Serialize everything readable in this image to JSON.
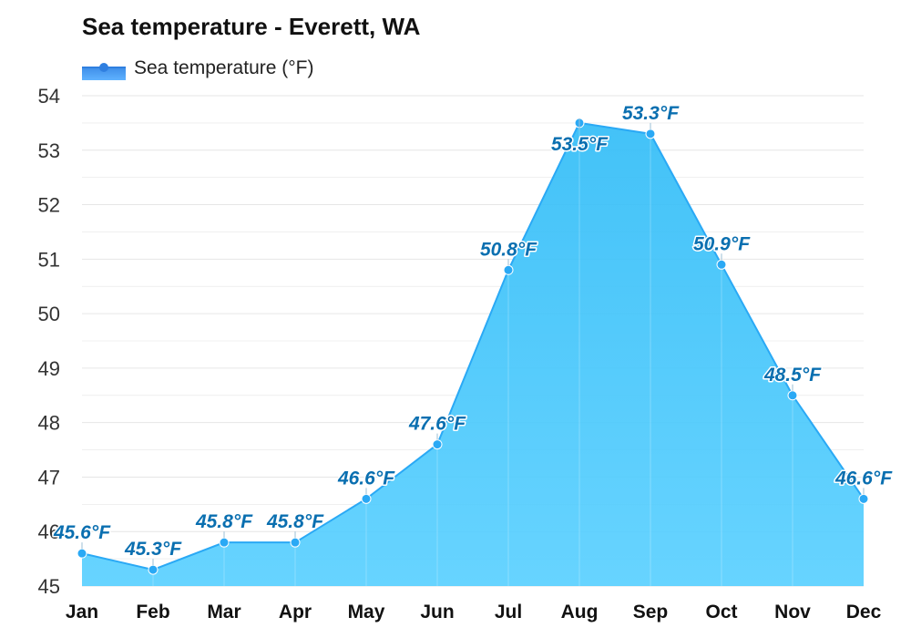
{
  "chart_data": {
    "type": "area",
    "title": "Sea temperature - Everett, WA",
    "xlabel": "",
    "ylabel": "",
    "categories": [
      "Jan",
      "Feb",
      "Mar",
      "Apr",
      "May",
      "Jun",
      "Jul",
      "Aug",
      "Sep",
      "Oct",
      "Nov",
      "Dec"
    ],
    "series": [
      {
        "name": "Sea temperature (°F)",
        "values": [
          45.6,
          45.3,
          45.8,
          45.8,
          46.6,
          47.6,
          50.8,
          53.5,
          53.3,
          50.9,
          48.5,
          46.6
        ],
        "labels": [
          "45.6°F",
          "45.3°F",
          "45.8°F",
          "45.8°F",
          "46.6°F",
          "47.6°F",
          "50.8°F",
          "53.5°F",
          "53.3°F",
          "50.9°F",
          "48.5°F",
          "46.6°F"
        ],
        "color": "#2aa9f5"
      }
    ],
    "yticks": [
      "45",
      "46",
      "47",
      "48",
      "49",
      "50",
      "51",
      "52",
      "53",
      "54"
    ],
    "ylim": [
      45,
      54
    ],
    "grid": true,
    "legend": "top-left"
  },
  "colors": {
    "line": "#2aa9f5",
    "fill_top": "#33bdf7",
    "fill_bottom": "#5ad0ff",
    "grid": "#e6e6e6"
  }
}
